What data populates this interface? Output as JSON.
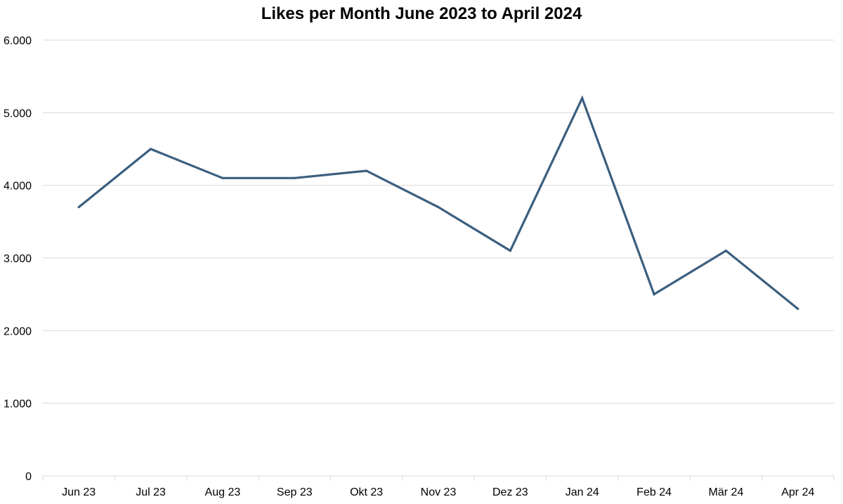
{
  "chart_data": {
    "type": "line",
    "title": "Likes per Month June 2023 to April 2024",
    "xlabel": "",
    "ylabel": "",
    "categories": [
      "Jun 23",
      "Jul 23",
      "Aug 23",
      "Sep 23",
      "Okt 23",
      "Nov 23",
      "Dez 23",
      "Jan 24",
      "Feb 24",
      "Mär 24",
      "Apr 24"
    ],
    "series": [
      {
        "values": [
          3700,
          4500,
          4100,
          4100,
          4200,
          3700,
          3100,
          5200,
          2500,
          3100,
          2300
        ],
        "color": "#3B5F7F"
      }
    ],
    "ylim": [
      0,
      6000
    ],
    "yticks": [
      0,
      1000,
      2000,
      3000,
      4000,
      5000,
      6000
    ],
    "ytick_labels": [
      "0",
      "1.000",
      "2.000",
      "3.000",
      "4.000",
      "5.000",
      "6.000"
    ],
    "grid": true,
    "legend": "none",
    "gridline_color": "#D9D9D9"
  }
}
